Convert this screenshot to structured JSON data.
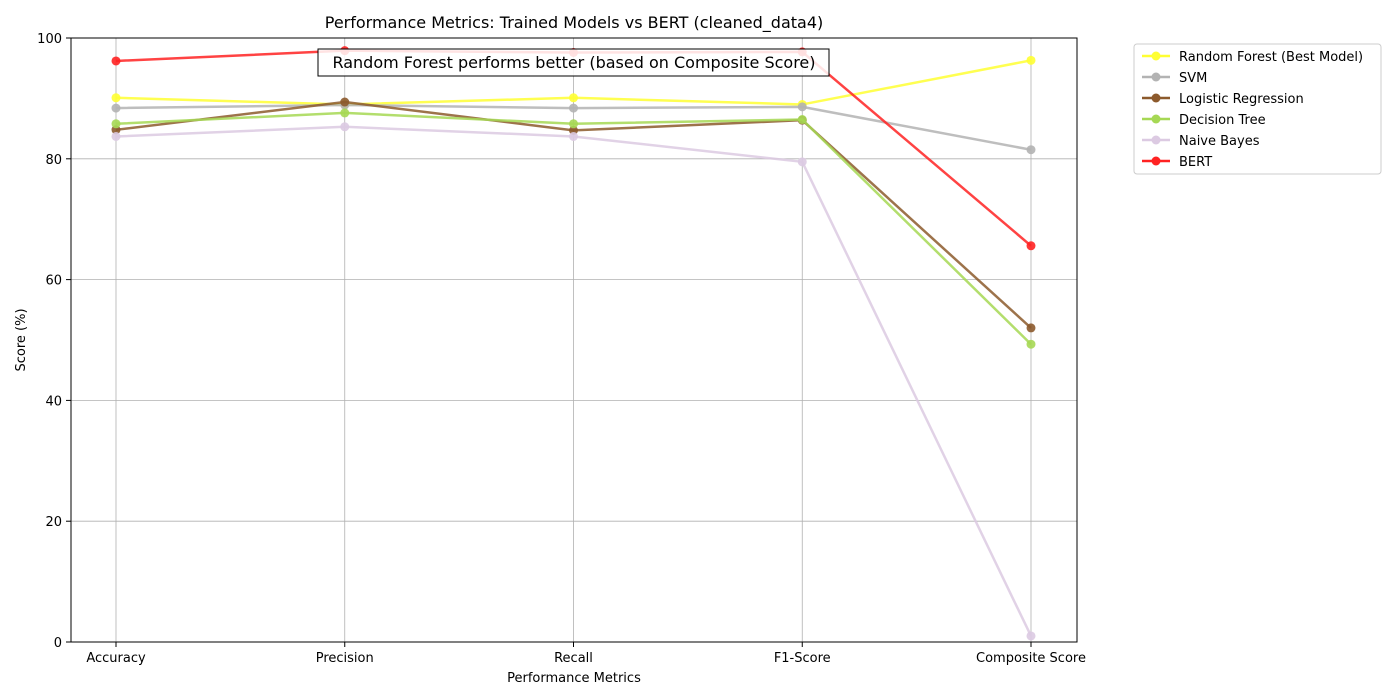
{
  "chart_data": {
    "type": "line",
    "title": "Performance Metrics: Trained Models vs BERT (cleaned_data4)",
    "xlabel": "Performance Metrics",
    "ylabel": "Score (%)",
    "categories": [
      "Accuracy",
      "Precision",
      "Recall",
      "F1-Score",
      "Composite Score"
    ],
    "ylim": [
      0,
      100
    ],
    "yticks": [
      0,
      20,
      40,
      60,
      80,
      100
    ],
    "grid": true,
    "legend_position": "outside-top-right",
    "annotation": "Random Forest performs better (based on Composite Score)",
    "series": [
      {
        "name": "Random Forest (Best Model)",
        "color": "#ffff33",
        "values": [
          90.1,
          89.0,
          90.1,
          89.0,
          96.3
        ]
      },
      {
        "name": "SVM",
        "color": "#b3b3b3",
        "values": [
          88.4,
          88.9,
          88.4,
          88.6,
          81.5
        ]
      },
      {
        "name": "Logistic Regression",
        "color": "#8c5a2c",
        "values": [
          84.8,
          89.4,
          84.7,
          86.4,
          52.0
        ]
      },
      {
        "name": "Decision Tree",
        "color": "#a6d854",
        "values": [
          85.8,
          87.6,
          85.8,
          86.5,
          49.3
        ]
      },
      {
        "name": "Naive Bayes",
        "color": "#dccae2",
        "values": [
          83.7,
          85.3,
          83.7,
          79.5,
          1.0
        ]
      },
      {
        "name": "BERT",
        "color": "#ff2222",
        "values": [
          96.2,
          97.9,
          97.6,
          97.7,
          65.6
        ]
      }
    ]
  }
}
